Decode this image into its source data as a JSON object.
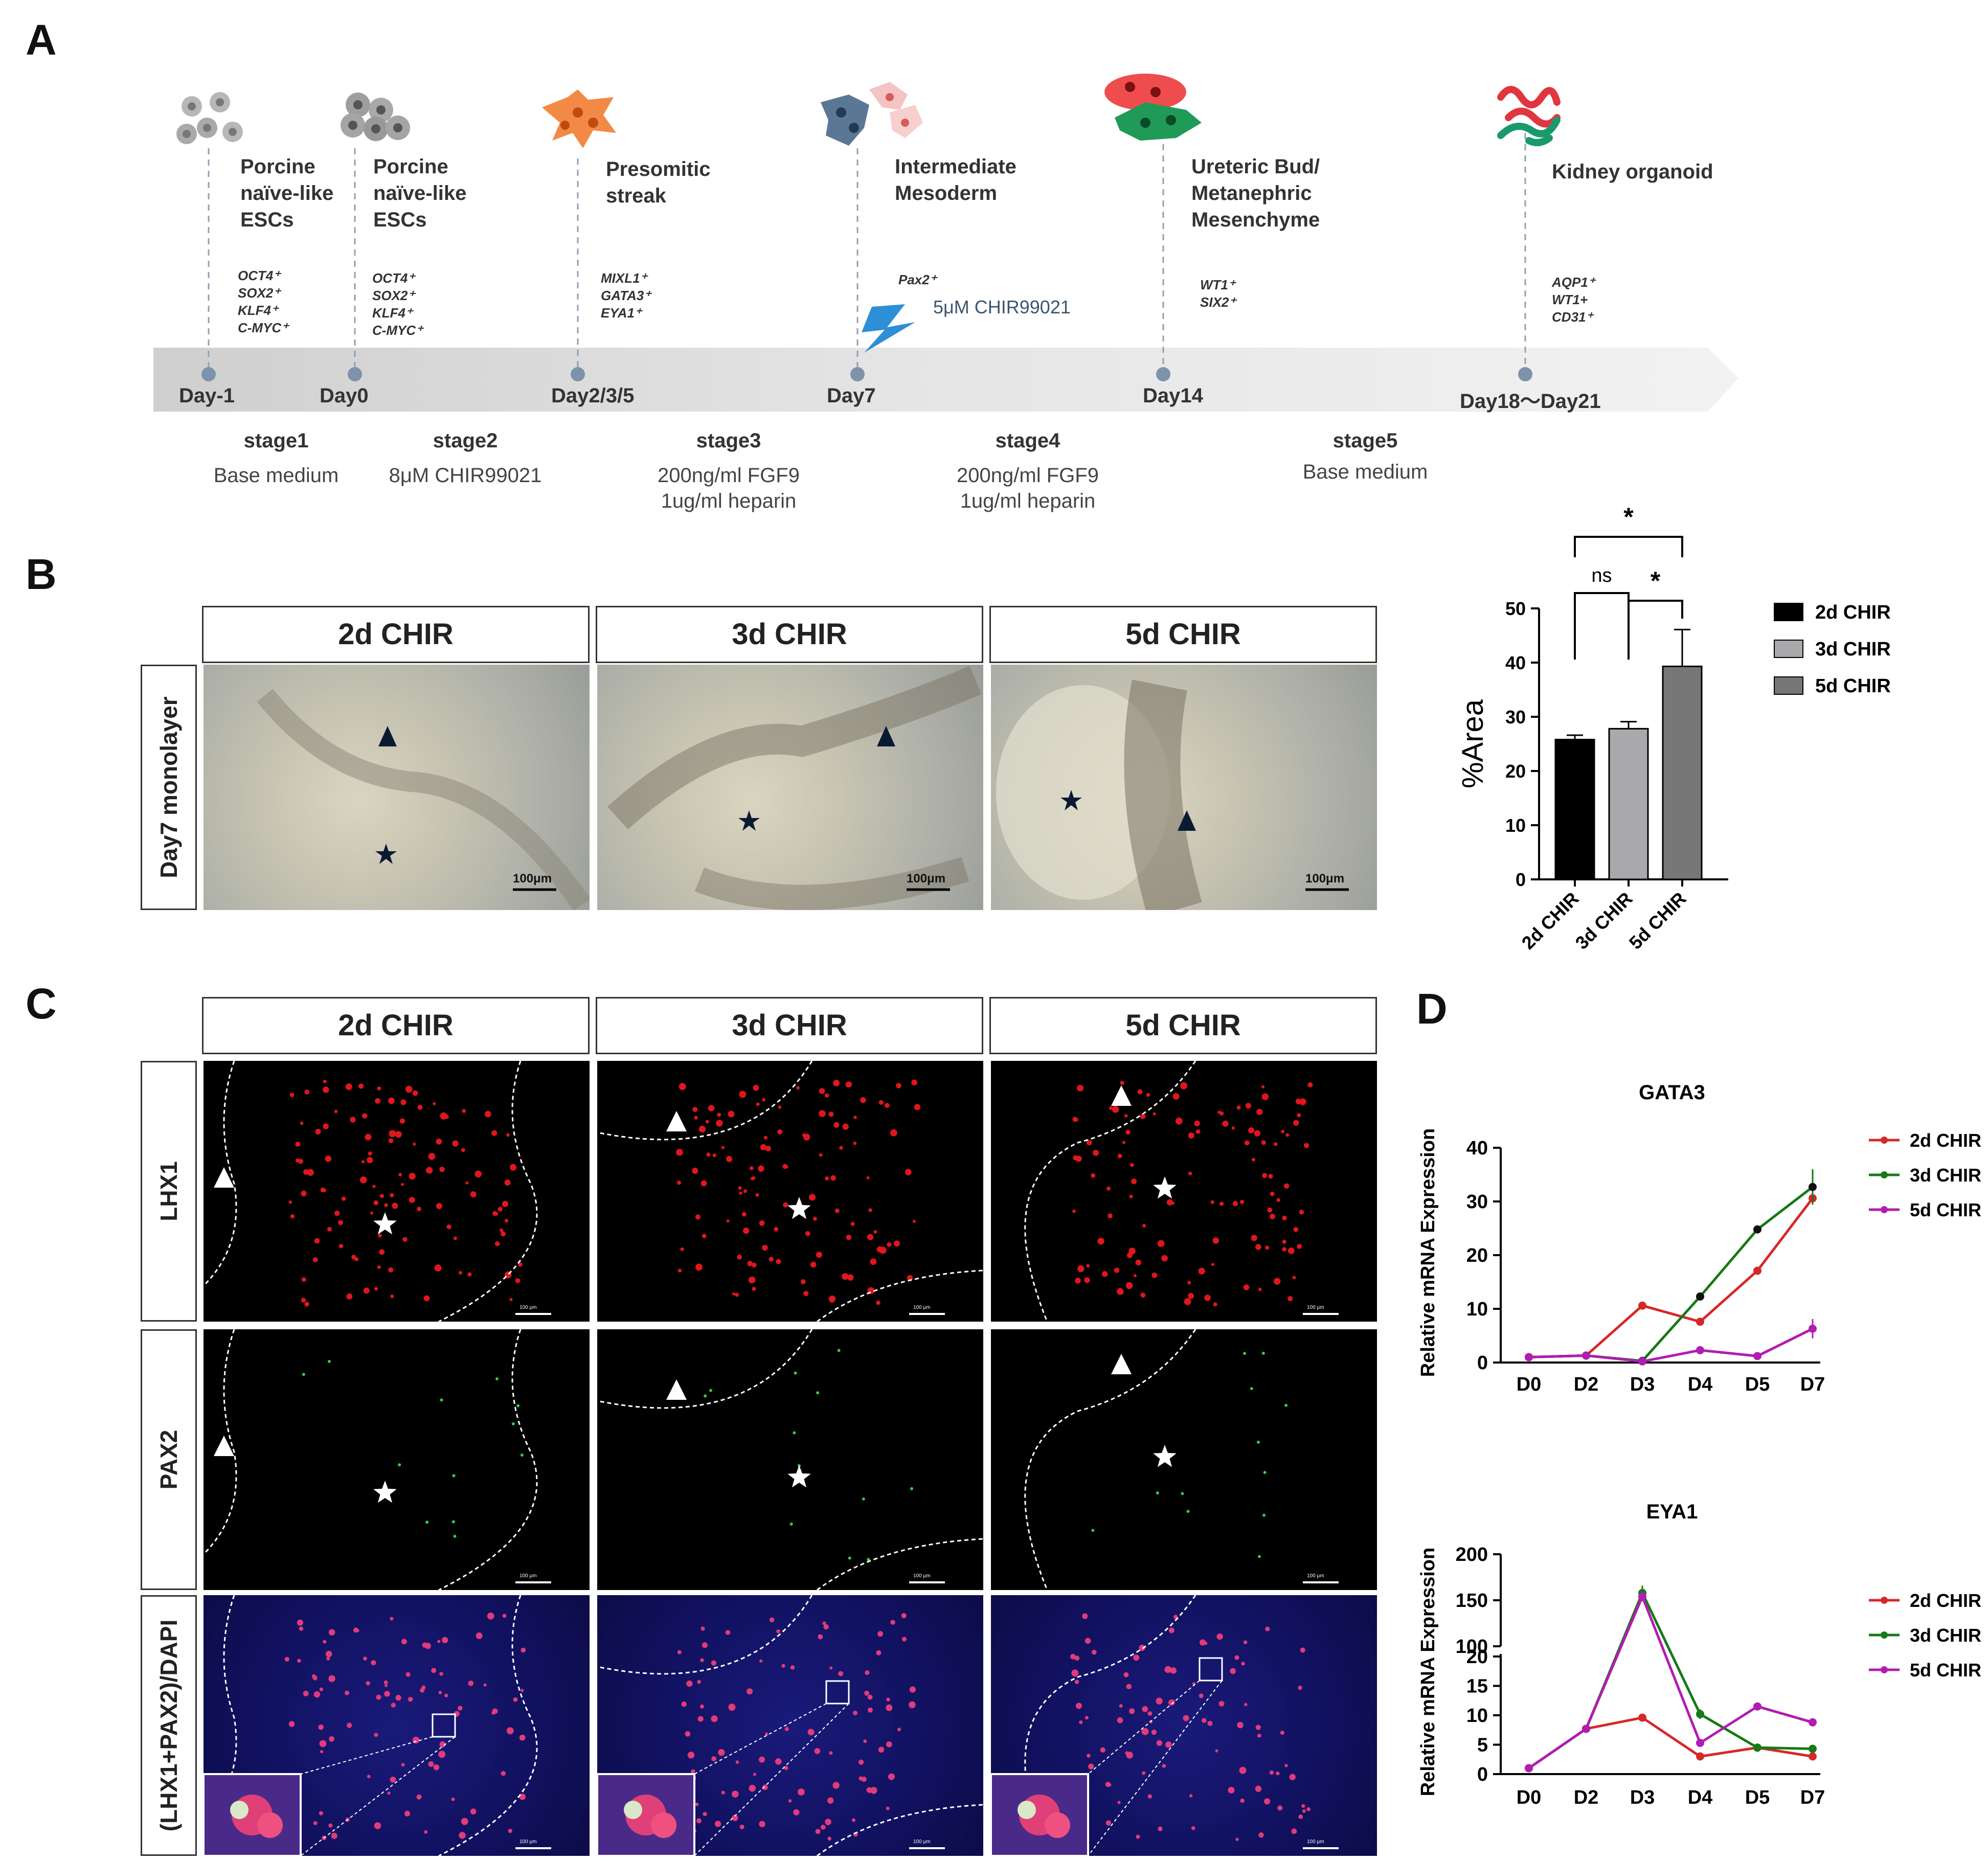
{
  "panel_labels": {
    "a": "A",
    "b": "B",
    "c": "C",
    "d": "D"
  },
  "timeline": {
    "stages_top": [
      {
        "title": "Porcine\nnaïve-like\nESCs",
        "markers": "OCT4⁺\nSOX2⁺\nKLF4⁺\nC-MYC⁺",
        "day": "Day-1"
      },
      {
        "title": "Porcine\nnaïve-like\nESCs",
        "markers": "OCT4⁺\nSOX2⁺\nKLF4⁺\nC-MYC⁺",
        "day": "Day0"
      },
      {
        "title": "Presomitic\nstreak",
        "markers": "MIXL1⁺\nGATA3⁺\nEYA1⁺",
        "day": "Day2/3/5"
      },
      {
        "title": "Intermediate\nMesoderm",
        "markers": "Pax2⁺",
        "day": "Day7"
      },
      {
        "title": "Ureteric Bud/\nMetanephric\nMesenchyme",
        "markers": "WT1⁺\nSIX2⁺",
        "day": "Day14"
      },
      {
        "title": "Kidney organoid",
        "markers": "AQP1⁺\nWT1+\nCD31⁺",
        "day": "Day18～Day21"
      }
    ],
    "day7_treatment": "5μM CHIR99021",
    "stages_bottom": [
      {
        "name": "stage1",
        "medium": "Base medium"
      },
      {
        "name": "stage2",
        "medium": "8μM CHIR99021"
      },
      {
        "name": "stage3",
        "medium": "200ng/ml FGF9\n1ug/ml heparin"
      },
      {
        "name": "stage4",
        "medium": "200ng/ml FGF9\n1ug/ml heparin"
      },
      {
        "name": "stage5",
        "medium": "Base medium"
      }
    ]
  },
  "conditions": [
    "2d CHIR",
    "3d CHIR",
    "5d CHIR"
  ],
  "row_b": "Day7 monolayer",
  "rows_c": [
    "LHX1",
    "PAX2",
    "(LHX1+PAX2)/DAPI"
  ],
  "scale_bar": "100μm",
  "scale_bar_small": "100 μm",
  "colors": {
    "2d": "#000000",
    "3d": "#a9a9ab",
    "5d": "#777777",
    "line_2d": "#d62828",
    "line_3d": "#167a16",
    "line_5d": "#b21cb2"
  },
  "chart_data": [
    {
      "type": "bar",
      "ylabel": "%Area",
      "ylim": [
        0,
        50
      ],
      "yticks": [
        0,
        10,
        20,
        30,
        40,
        50
      ],
      "categories": [
        "2d CHIR",
        "3d CHIR",
        "5d CHIR"
      ],
      "values": [
        25.8,
        27.8,
        39.3
      ],
      "errors": [
        0.8,
        1.3,
        6.8
      ],
      "significance": [
        {
          "pair": [
            "2d CHIR",
            "3d CHIR"
          ],
          "label": "ns"
        },
        {
          "pair": [
            "3d CHIR",
            "5d CHIR"
          ],
          "label": "*"
        },
        {
          "pair": [
            "2d CHIR",
            "5d CHIR"
          ],
          "label": "*"
        }
      ],
      "legend": [
        "2d CHIR",
        "3d CHIR",
        "5d CHIR"
      ]
    },
    {
      "type": "line",
      "title": "GATA3",
      "ylabel": "Relative mRNA Expression",
      "ylim": [
        0,
        40
      ],
      "yticks": [
        0,
        10,
        20,
        30,
        40
      ],
      "categories": [
        "D0",
        "D2",
        "D3",
        "D4",
        "D5",
        "D7"
      ],
      "series": [
        {
          "name": "2d CHIR",
          "values": [
            1.0,
            1.3,
            10.6,
            7.6,
            17.1,
            30.6
          ]
        },
        {
          "name": "3d CHIR",
          "values": [
            1.0,
            1.3,
            0.3,
            12.3,
            24.8,
            32.7
          ],
          "errors": [
            0,
            0,
            0,
            0,
            0.6,
            3.3
          ]
        },
        {
          "name": "5d CHIR",
          "values": [
            1.0,
            1.3,
            0.2,
            2.3,
            1.2,
            6.3
          ],
          "errors": [
            0,
            0,
            0,
            0,
            0,
            1.8
          ]
        }
      ]
    },
    {
      "type": "line",
      "title": "EYA1",
      "ylabel": "Relative mRNA Expression",
      "axis_break": [
        20,
        100
      ],
      "yticks": [
        0,
        5,
        10,
        15,
        20,
        100,
        150,
        200
      ],
      "categories": [
        "D0",
        "D2",
        "D3",
        "D4",
        "D5",
        "D7"
      ],
      "series": [
        {
          "name": "2d CHIR",
          "values": [
            1.0,
            7.7,
            9.6,
            3.0,
            4.5,
            3.0
          ]
        },
        {
          "name": "3d CHIR",
          "values": [
            1.0,
            7.7,
            158,
            10.2,
            4.5,
            4.3
          ],
          "errors": [
            0,
            0,
            8,
            0.8,
            0,
            0
          ]
        },
        {
          "name": "5d CHIR",
          "values": [
            1.0,
            7.7,
            154,
            5.3,
            11.5,
            8.8
          ],
          "errors": [
            0,
            0,
            5,
            0,
            0.6,
            0.6
          ]
        }
      ]
    }
  ]
}
